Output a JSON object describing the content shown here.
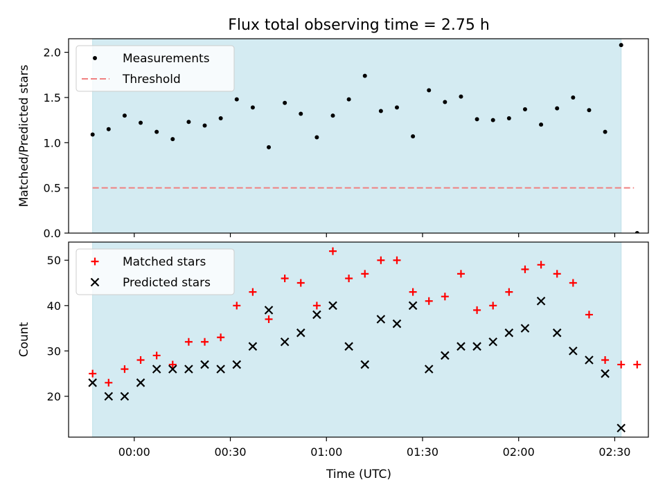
{
  "title": "Flux total observing time = 2.75 h",
  "xlabel": "Time (UTC)",
  "x_ticks": [
    "00:00",
    "00:30",
    "01:00",
    "01:30",
    "02:00",
    "02:30"
  ],
  "colors": {
    "shade": "#d4ebf2",
    "measurement": "#000000",
    "threshold": "#f08080",
    "matched": "#ff0000",
    "predicted": "#000000"
  },
  "chart_data": [
    {
      "type": "scatter",
      "ylabel": "Matched/Predicted stars",
      "ylim": [
        0,
        2.15
      ],
      "y_ticks": [
        "0.0",
        "0.5",
        "1.0",
        "1.5",
        "2.0"
      ],
      "legend_placement": "upper-left",
      "grid": false,
      "shaded_span": [
        "23:47",
        "02:32"
      ],
      "series": [
        {
          "name": "Measurements",
          "marker": "dot",
          "x": [
            "23:47",
            "23:52",
            "23:57",
            "00:02",
            "00:07",
            "00:12",
            "00:17",
            "00:22",
            "00:27",
            "00:32",
            "00:37",
            "00:42",
            "00:47",
            "00:52",
            "00:57",
            "01:02",
            "01:07",
            "01:12",
            "01:17",
            "01:22",
            "01:27",
            "01:32",
            "01:37",
            "01:42",
            "01:47",
            "01:52",
            "01:57",
            "02:02",
            "02:07",
            "02:12",
            "02:17",
            "02:22",
            "02:27",
            "02:32",
            "02:37"
          ],
          "y": [
            1.09,
            1.15,
            1.3,
            1.22,
            1.12,
            1.04,
            1.23,
            1.19,
            1.27,
            1.48,
            1.39,
            0.95,
            1.44,
            1.32,
            1.06,
            1.3,
            1.48,
            1.74,
            1.35,
            1.39,
            1.07,
            1.58,
            1.45,
            1.51,
            1.26,
            1.25,
            1.27,
            1.37,
            1.2,
            1.38,
            1.5,
            1.36,
            1.12,
            2.08,
            0.0
          ]
        },
        {
          "name": "Threshold",
          "line_style": "dashed",
          "x": [
            "23:47",
            "02:36"
          ],
          "y": [
            0.5,
            0.5
          ]
        }
      ]
    },
    {
      "type": "scatter",
      "ylabel": "Count",
      "ylim": [
        11,
        54
      ],
      "y_ticks": [
        "20",
        "30",
        "40",
        "50"
      ],
      "legend_placement": "upper-left",
      "grid": false,
      "shaded_span": [
        "23:47",
        "02:32"
      ],
      "series": [
        {
          "name": "Matched stars",
          "marker": "plus",
          "x": [
            "23:47",
            "23:52",
            "23:57",
            "00:02",
            "00:07",
            "00:12",
            "00:17",
            "00:22",
            "00:27",
            "00:32",
            "00:37",
            "00:42",
            "00:47",
            "00:52",
            "00:57",
            "01:02",
            "01:07",
            "01:12",
            "01:17",
            "01:22",
            "01:27",
            "01:32",
            "01:37",
            "01:42",
            "01:47",
            "01:52",
            "01:57",
            "02:02",
            "02:07",
            "02:12",
            "02:17",
            "02:22",
            "02:27",
            "02:32",
            "02:37"
          ],
          "y": [
            25,
            23,
            26,
            28,
            29,
            27,
            32,
            32,
            33,
            40,
            43,
            37,
            46,
            45,
            40,
            52,
            46,
            47,
            50,
            50,
            43,
            41,
            42,
            47,
            39,
            40,
            43,
            48,
            49,
            47,
            45,
            38,
            28,
            27,
            27
          ]
        },
        {
          "name": "Predicted stars",
          "marker": "x",
          "x": [
            "23:47",
            "23:52",
            "23:57",
            "00:02",
            "00:07",
            "00:12",
            "00:17",
            "00:22",
            "00:27",
            "00:32",
            "00:37",
            "00:42",
            "00:47",
            "00:52",
            "00:57",
            "01:02",
            "01:07",
            "01:12",
            "01:17",
            "01:22",
            "01:27",
            "01:32",
            "01:37",
            "01:42",
            "01:47",
            "01:52",
            "01:57",
            "02:02",
            "02:07",
            "02:12",
            "02:17",
            "02:22",
            "02:27",
            "02:32"
          ],
          "y": [
            23,
            20,
            20,
            23,
            26,
            26,
            26,
            27,
            26,
            27,
            31,
            39,
            32,
            34,
            38,
            40,
            31,
            27,
            37,
            36,
            40,
            26,
            29,
            31,
            31,
            32,
            34,
            35,
            41,
            34,
            30,
            28,
            25,
            13
          ]
        }
      ]
    }
  ]
}
